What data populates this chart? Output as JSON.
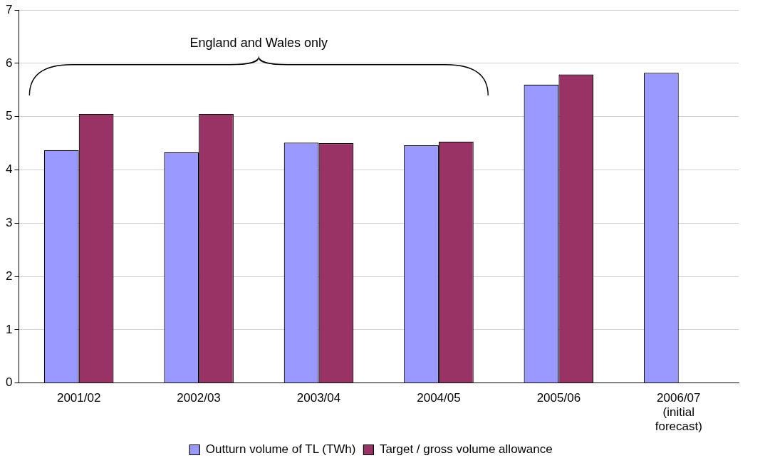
{
  "chart_data": {
    "type": "bar",
    "categories": [
      "2001/02",
      "2002/03",
      "2003/04",
      "2004/05",
      "2005/06",
      "2006/07 (initial forecast)"
    ],
    "series": [
      {
        "name": "Outturn volume of TL (TWh)",
        "color": "#9999ff",
        "values": [
          4.37,
          4.33,
          4.51,
          4.46,
          5.6,
          5.82
        ]
      },
      {
        "name": "Target / gross volume allowance",
        "color": "#993366",
        "values": [
          5.05,
          5.05,
          4.5,
          4.53,
          5.79,
          null
        ]
      }
    ],
    "ylim": [
      0,
      7
    ],
    "yticks": [
      0,
      1,
      2,
      3,
      4,
      5,
      6,
      7
    ],
    "grid": "y",
    "legend": "bottom",
    "annotations": [
      "England and Wales only"
    ]
  }
}
